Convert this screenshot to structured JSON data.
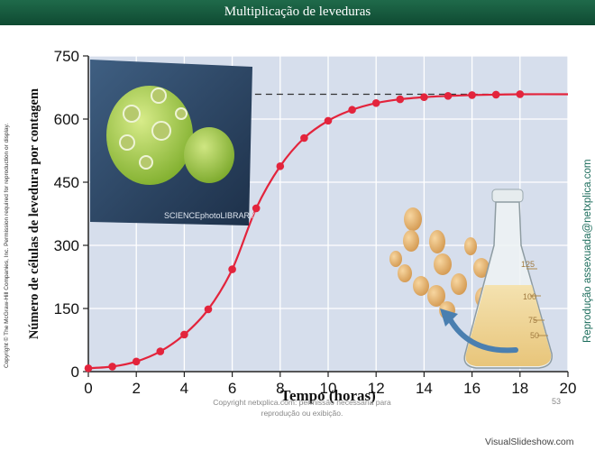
{
  "slide": {
    "title": "Multiplicação de leveduras",
    "copyright_side": "Copyright © The McGraw-Hill Companies, Inc. Permission required for reproduction or display.",
    "side_caption": "Reprodução assexuada@netxplica.com",
    "footer_copyright": "Copyright netxplica.com: permissão necessária para reprodução ou exibição.",
    "page_number": "53",
    "watermark": "VisualSlideshow.com",
    "photo_credit": "SCIENCEphotoLIBRARY",
    "flask_marks": [
      "125",
      "100",
      "75",
      "50"
    ]
  },
  "colors": {
    "title_bar": "#0f4a32",
    "plot_background": "#d6deec",
    "grid": "#ffffff",
    "curve": "#e3243c",
    "marker": "#e3243c",
    "side_caption": "#1a6b5a"
  },
  "icons": [
    "yeast-micrograph-photo",
    "erlenmeyer-flask-illustration",
    "budding-yeast-cells-illustration",
    "curved-arrow"
  ],
  "chart_data": {
    "type": "line",
    "title": "",
    "xlabel": "Tempo (horas)",
    "ylabel": "Número de células de levedura por contagem",
    "xlim": [
      0,
      20
    ],
    "ylim": [
      0,
      750
    ],
    "xticks": [
      0,
      2,
      4,
      6,
      8,
      10,
      12,
      14,
      16,
      18,
      20
    ],
    "yticks": [
      0,
      150,
      300,
      450,
      600,
      750
    ],
    "grid": true,
    "series": [
      {
        "x": [
          0,
          1,
          2,
          3,
          4,
          5,
          6,
          7,
          8,
          9,
          10,
          11,
          12,
          13,
          14,
          15,
          16,
          17,
          18
        ],
        "y": [
          8,
          12,
          24,
          48,
          88,
          148,
          243,
          388,
          488,
          555,
          596,
          622,
          638,
          647,
          652,
          655,
          657,
          658,
          659
        ]
      }
    ],
    "reference_line": {
      "y": 659,
      "x_from": 6.5,
      "x_to": 20,
      "style": "dashed"
    }
  }
}
